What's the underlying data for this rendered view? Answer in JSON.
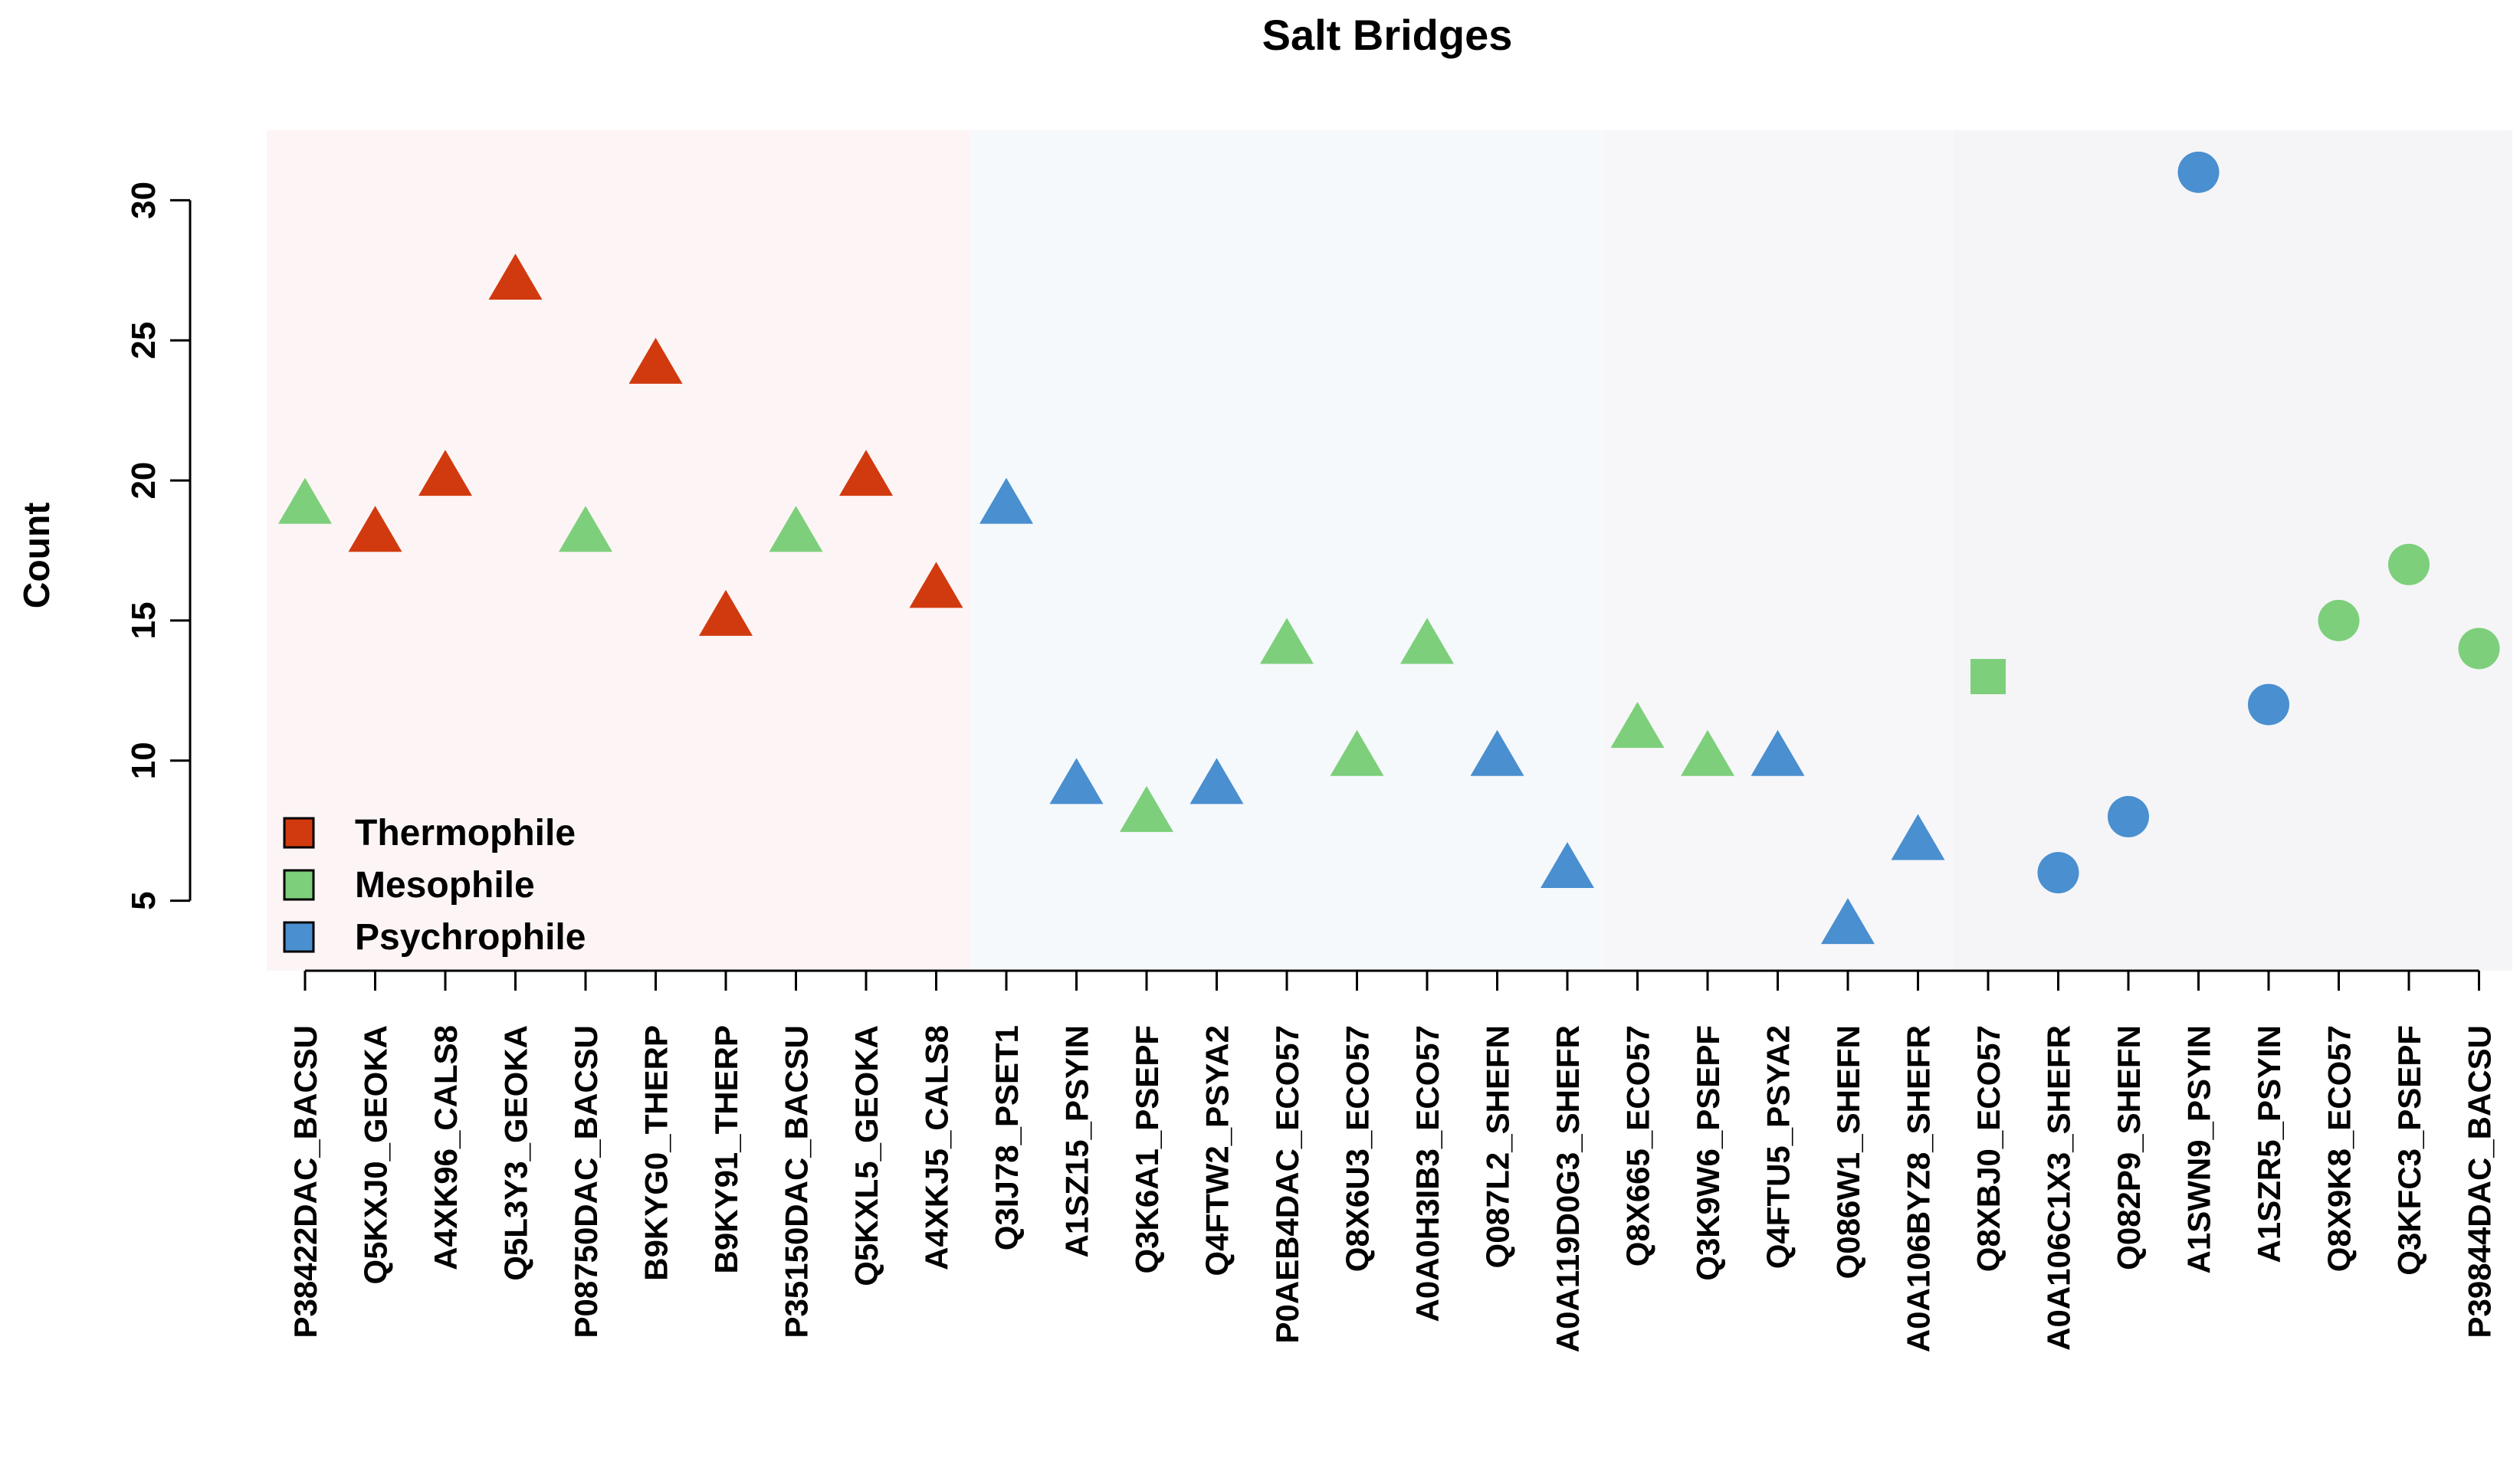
{
  "chart_data": {
    "type": "scatter",
    "title": "Salt Bridges",
    "xlabel": "",
    "ylabel": "Count",
    "ylim": [
      2.5,
      32.5
    ],
    "yticks": [
      5,
      10,
      15,
      20,
      25,
      30
    ],
    "grid": false,
    "legend_position": "bottom-left",
    "colors": {
      "Thermophile": "#d13a0f",
      "Mesophile": "#7dcf7b",
      "Psychrophile": "#4a8fcf"
    },
    "legend": [
      {
        "label": "Thermophile",
        "color": "#d13a0f"
      },
      {
        "label": "Mesophile",
        "color": "#7dcf7b"
      },
      {
        "label": "Psychrophile",
        "color": "#4a8fcf"
      }
    ],
    "bands": [
      {
        "from": 0,
        "to": 9,
        "color": "#fdf5f5"
      },
      {
        "from": 10,
        "to": 18,
        "color": "#f6f9fc"
      },
      {
        "from": 19,
        "to": 23,
        "color": "#f7f7fa"
      },
      {
        "from": 24,
        "to": 31,
        "color": "#f5f5f7"
      }
    ],
    "points": [
      {
        "label": "P38422DAC_BACSU",
        "value": 19,
        "group": "Mesophile",
        "shape": "triangle"
      },
      {
        "label": "Q5KXJ0_GEOKA",
        "value": 18,
        "group": "Thermophile",
        "shape": "triangle"
      },
      {
        "label": "A4XK96_CALS8",
        "value": 20,
        "group": "Thermophile",
        "shape": "triangle"
      },
      {
        "label": "Q5L3Y3_GEOKA",
        "value": 27,
        "group": "Thermophile",
        "shape": "triangle"
      },
      {
        "label": "P08750DAC_BACSU",
        "value": 18,
        "group": "Mesophile",
        "shape": "triangle"
      },
      {
        "label": "B9KYG0_THERP",
        "value": 24,
        "group": "Thermophile",
        "shape": "triangle"
      },
      {
        "label": "B9KY91_THERP",
        "value": 15,
        "group": "Thermophile",
        "shape": "triangle"
      },
      {
        "label": "P35150DAC_BACSU",
        "value": 18,
        "group": "Mesophile",
        "shape": "triangle"
      },
      {
        "label": "Q5KXL5_GEOKA",
        "value": 20,
        "group": "Thermophile",
        "shape": "triangle"
      },
      {
        "label": "A4XKJ5_CALS8",
        "value": 16,
        "group": "Thermophile",
        "shape": "triangle"
      },
      {
        "label": "Q3IJ78_PSET1",
        "value": 19,
        "group": "Psychrophile",
        "shape": "triangle"
      },
      {
        "label": "A1SZ15_PSYIN",
        "value": 9,
        "group": "Psychrophile",
        "shape": "triangle"
      },
      {
        "label": "Q3K6A1_PSEPF",
        "value": 8,
        "group": "Mesophile",
        "shape": "triangle"
      },
      {
        "label": "Q4FTW2_PSYA2",
        "value": 9,
        "group": "Psychrophile",
        "shape": "triangle"
      },
      {
        "label": "P0AEB4DAC_ECO57",
        "value": 14,
        "group": "Mesophile",
        "shape": "triangle"
      },
      {
        "label": "Q8X6U3_ECO57",
        "value": 10,
        "group": "Mesophile",
        "shape": "triangle"
      },
      {
        "label": "A0A0H3IB3_ECO57",
        "value": 14,
        "group": "Mesophile",
        "shape": "triangle"
      },
      {
        "label": "Q087L2_SHEFN",
        "value": 10,
        "group": "Psychrophile",
        "shape": "triangle"
      },
      {
        "label": "A0A119D0G3_SHEFR",
        "value": 6,
        "group": "Psychrophile",
        "shape": "triangle"
      },
      {
        "label": "Q8X665_ECO57",
        "value": 11,
        "group": "Mesophile",
        "shape": "triangle"
      },
      {
        "label": "Q3K9W6_PSEPF",
        "value": 10,
        "group": "Mesophile",
        "shape": "triangle"
      },
      {
        "label": "Q4FTU5_PSYA2",
        "value": 10,
        "group": "Psychrophile",
        "shape": "triangle"
      },
      {
        "label": "Q086W1_SHEFN",
        "value": 4,
        "group": "Psychrophile",
        "shape": "triangle"
      },
      {
        "label": "A0A106BYZ8_SHEFR",
        "value": 7,
        "group": "Psychrophile",
        "shape": "triangle"
      },
      {
        "label": "Q8XBJ0_ECO57",
        "value": 13,
        "group": "Mesophile",
        "shape": "square"
      },
      {
        "label": "A0A106C1X3_SHEFR",
        "value": 6,
        "group": "Psychrophile",
        "shape": "circle"
      },
      {
        "label": "Q082P9_SHEFN",
        "value": 8,
        "group": "Psychrophile",
        "shape": "circle"
      },
      {
        "label": "A1SWN9_PSYIN",
        "value": 31,
        "group": "Psychrophile",
        "shape": "circle"
      },
      {
        "label": "A1SZR5_PSYIN",
        "value": 12,
        "group": "Psychrophile",
        "shape": "circle"
      },
      {
        "label": "Q8X9K8_ECO57",
        "value": 15,
        "group": "Mesophile",
        "shape": "circle"
      },
      {
        "label": "Q3KFC3_PSEPF",
        "value": 17,
        "group": "Mesophile",
        "shape": "circle"
      },
      {
        "label": "P39844DAC_BACSU",
        "value": 14,
        "group": "Mesophile",
        "shape": "circle"
      }
    ]
  }
}
